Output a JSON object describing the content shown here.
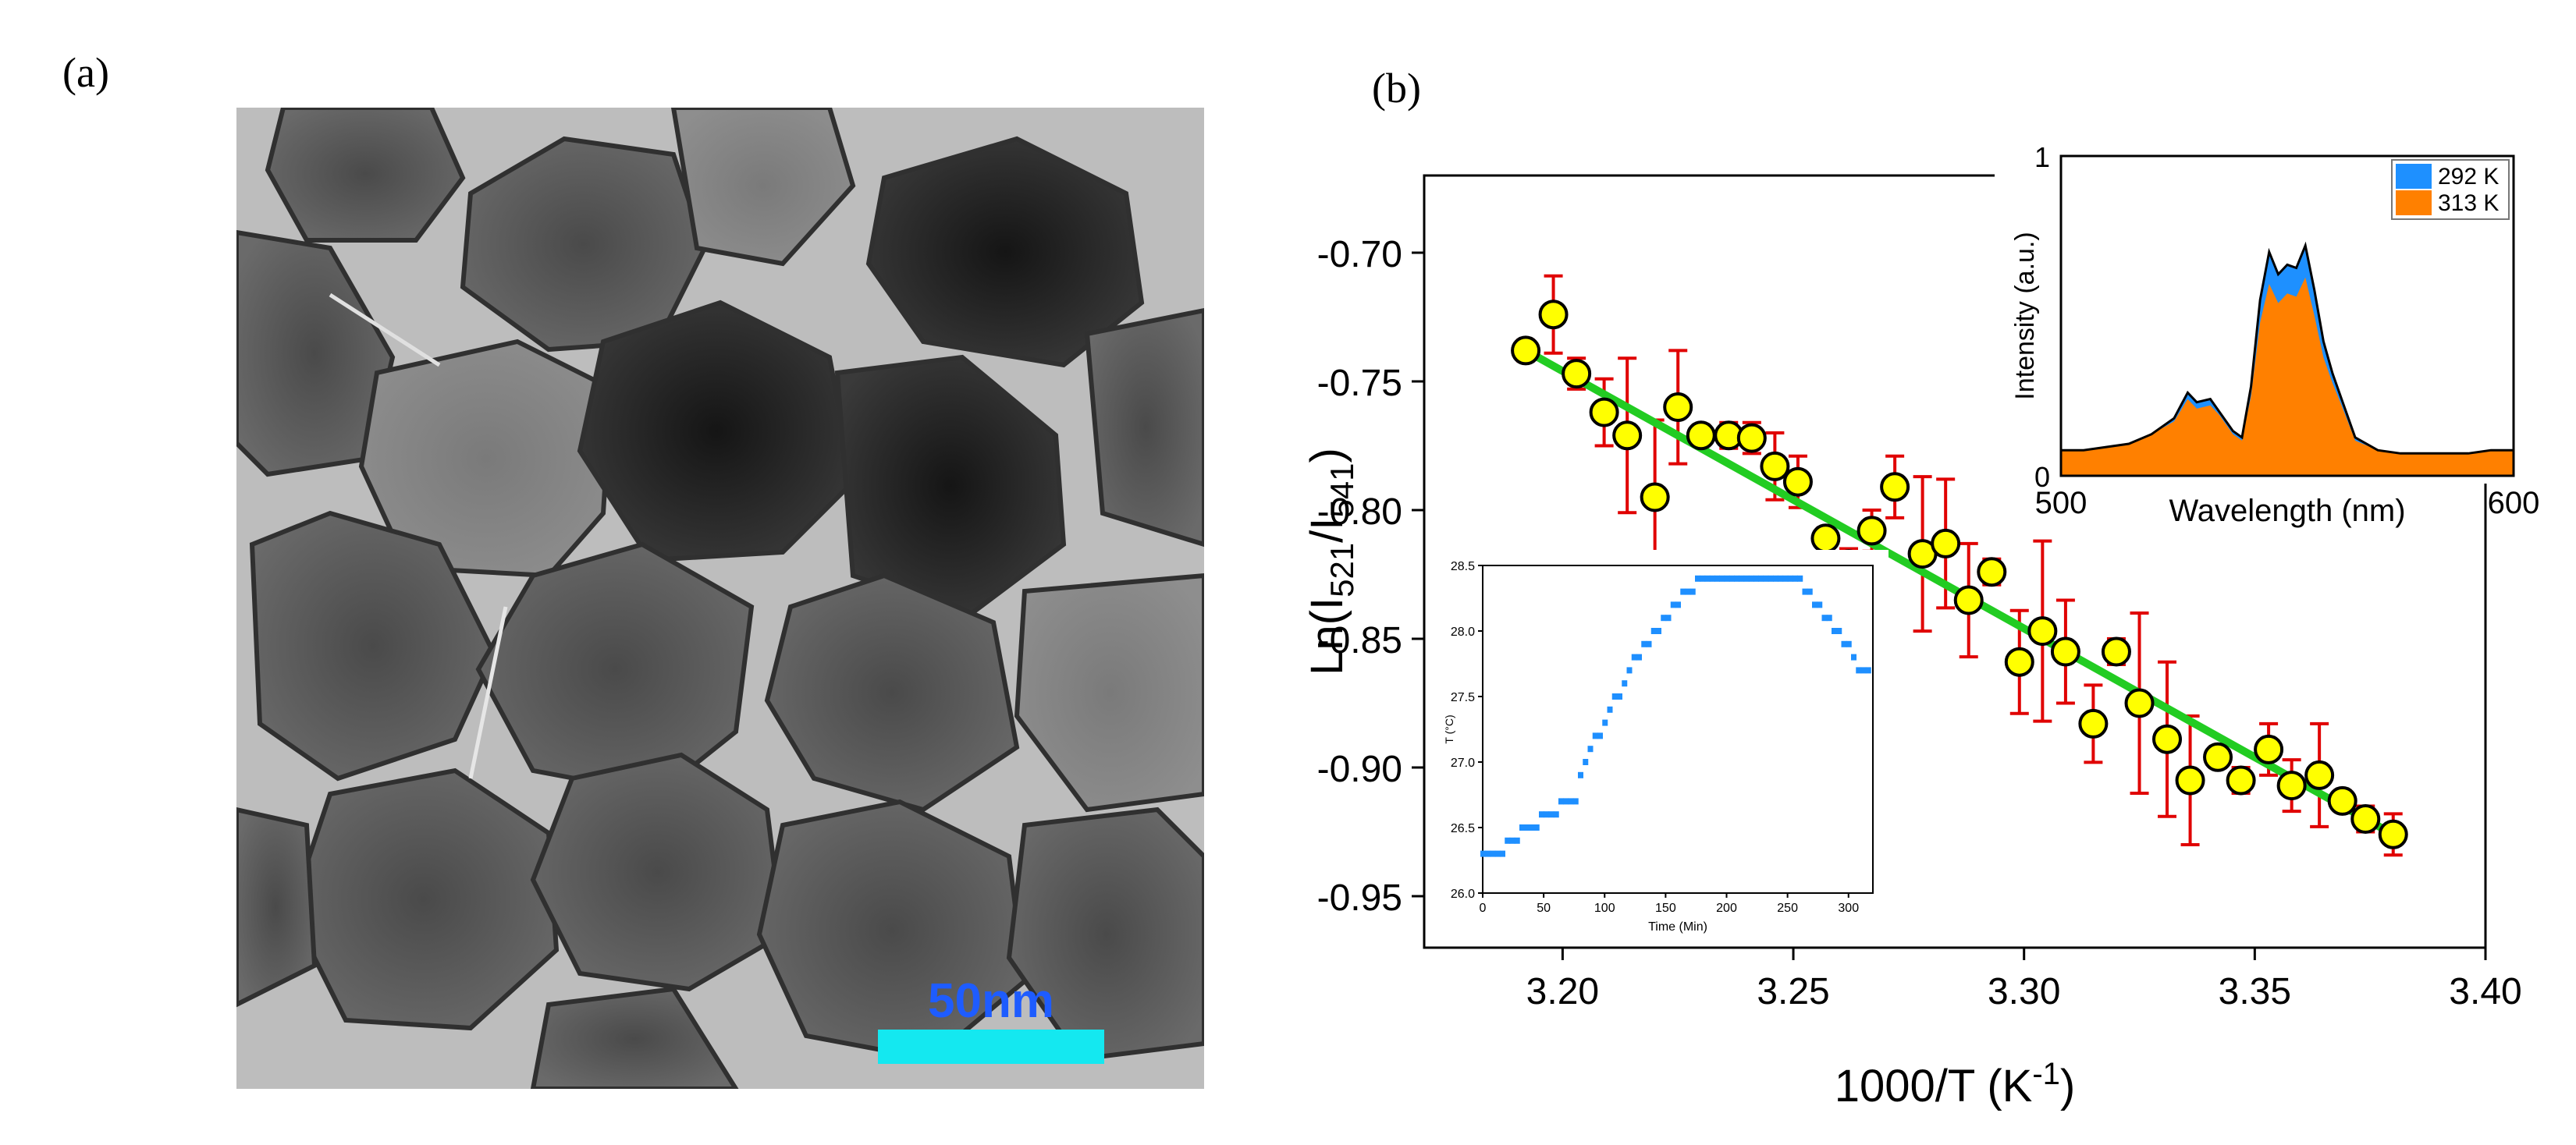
{
  "panels": {
    "a": "(a)",
    "b": "(b)"
  },
  "tem_image": {
    "scale_bar_label": "50nm",
    "scale_bar_color": "#14e8f0",
    "scale_label_color": "#1e5cff"
  },
  "chart_data": [
    {
      "type": "scatter",
      "title": "",
      "xlabel": "1000/T (K",
      "xlabel_sup": "-1",
      "xlabel_close": ")",
      "ylabel": "Ln(I",
      "ylabel_sub1": "521",
      "ylabel_mid": "/I",
      "ylabel_sub2": "541",
      "ylabel_close": ")",
      "xlim": [
        3.17,
        3.4
      ],
      "ylim": [
        -0.97,
        -0.67
      ],
      "xticks": [
        "3.20",
        "3.25",
        "3.30",
        "3.35",
        "3.40"
      ],
      "yticks": [
        "-0.70",
        "-0.75",
        "-0.80",
        "-0.85",
        "-0.90",
        "-0.95"
      ],
      "series": [
        {
          "marker_color": "#ffff00",
          "errorbar_color": "#e00000",
          "points": [
            {
              "x": 3.192,
              "y": -0.738,
              "err": 0.004
            },
            {
              "x": 3.198,
              "y": -0.724,
              "err": 0.015
            },
            {
              "x": 3.203,
              "y": -0.747,
              "err": 0.006
            },
            {
              "x": 3.209,
              "y": -0.762,
              "err": 0.013
            },
            {
              "x": 3.214,
              "y": -0.771,
              "err": 0.03
            },
            {
              "x": 3.22,
              "y": -0.795,
              "err": 0.03
            },
            {
              "x": 3.225,
              "y": -0.76,
              "err": 0.022
            },
            {
              "x": 3.23,
              "y": -0.771,
              "err": 0.004
            },
            {
              "x": 3.236,
              "y": -0.771,
              "err": 0.005
            },
            {
              "x": 3.241,
              "y": -0.772,
              "err": 0.006
            },
            {
              "x": 3.246,
              "y": -0.783,
              "err": 0.013
            },
            {
              "x": 3.251,
              "y": -0.789,
              "err": 0.01
            },
            {
              "x": 3.257,
              "y": -0.811,
              "err": 0.004
            },
            {
              "x": 3.262,
              "y": -0.821,
              "err": 0.006
            },
            {
              "x": 3.267,
              "y": -0.808,
              "err": 0.008
            },
            {
              "x": 3.272,
              "y": -0.791,
              "err": 0.012
            },
            {
              "x": 3.278,
              "y": -0.817,
              "err": 0.03
            },
            {
              "x": 3.283,
              "y": -0.813,
              "err": 0.025
            },
            {
              "x": 3.288,
              "y": -0.835,
              "err": 0.022
            },
            {
              "x": 3.293,
              "y": -0.824,
              "err": 0.005
            },
            {
              "x": 3.299,
              "y": -0.859,
              "err": 0.02
            },
            {
              "x": 3.304,
              "y": -0.847,
              "err": 0.035
            },
            {
              "x": 3.309,
              "y": -0.855,
              "err": 0.02
            },
            {
              "x": 3.315,
              "y": -0.883,
              "err": 0.015
            },
            {
              "x": 3.32,
              "y": -0.855,
              "err": 0.005
            },
            {
              "x": 3.325,
              "y": -0.875,
              "err": 0.035
            },
            {
              "x": 3.331,
              "y": -0.889,
              "err": 0.03
            },
            {
              "x": 3.336,
              "y": -0.905,
              "err": 0.025
            },
            {
              "x": 3.342,
              "y": -0.896,
              "err": 0.004
            },
            {
              "x": 3.347,
              "y": -0.905,
              "err": 0.005
            },
            {
              "x": 3.353,
              "y": -0.893,
              "err": 0.01
            },
            {
              "x": 3.358,
              "y": -0.907,
              "err": 0.01
            },
            {
              "x": 3.364,
              "y": -0.903,
              "err": 0.02
            },
            {
              "x": 3.369,
              "y": -0.913,
              "err": 0.004
            },
            {
              "x": 3.374,
              "y": -0.92,
              "err": 0.005
            },
            {
              "x": 3.38,
              "y": -0.926,
              "err": 0.008
            }
          ]
        }
      ],
      "fit_line": {
        "color": "#22cc22",
        "x": [
          3.192,
          3.382
        ],
        "y": [
          -0.738,
          -0.928
        ]
      }
    },
    {
      "type": "area",
      "xlabel": "Wavelength (nm)",
      "ylabel": "Intensity (a.u.)",
      "xlim": [
        500,
        600
      ],
      "ylim": [
        0,
        1
      ],
      "xticks": [
        "500",
        "600"
      ],
      "yticks": [
        "0",
        "1"
      ],
      "legend_position": "top-right",
      "series": [
        {
          "name": "292 K",
          "color": "#1e90ff"
        },
        {
          "name": "313 K",
          "color": "#ff8000"
        }
      ],
      "x": [
        500,
        505,
        510,
        515,
        520,
        525,
        528,
        530,
        533,
        535,
        538,
        540,
        542,
        544,
        546,
        548,
        550,
        552,
        554,
        556,
        558,
        560,
        562,
        565,
        570,
        575,
        580,
        585,
        590,
        595,
        600
      ],
      "y_292": [
        0.08,
        0.08,
        0.09,
        0.1,
        0.13,
        0.18,
        0.26,
        0.23,
        0.24,
        0.2,
        0.14,
        0.12,
        0.28,
        0.55,
        0.7,
        0.63,
        0.66,
        0.65,
        0.72,
        0.58,
        0.42,
        0.32,
        0.24,
        0.12,
        0.08,
        0.07,
        0.07,
        0.07,
        0.07,
        0.08,
        0.08
      ],
      "y_313": [
        0.08,
        0.08,
        0.09,
        0.1,
        0.13,
        0.17,
        0.24,
        0.21,
        0.22,
        0.19,
        0.13,
        0.11,
        0.25,
        0.48,
        0.6,
        0.54,
        0.57,
        0.56,
        0.62,
        0.5,
        0.37,
        0.29,
        0.22,
        0.11,
        0.08,
        0.07,
        0.07,
        0.07,
        0.07,
        0.08,
        0.08
      ]
    },
    {
      "type": "scatter",
      "xlabel": "Time (Min)",
      "ylabel": "T (°C)",
      "xlim": [
        0,
        320
      ],
      "ylim": [
        26.0,
        28.5
      ],
      "xticks": [
        "0",
        "50",
        "100",
        "150",
        "200",
        "250",
        "300"
      ],
      "yticks": [
        "26.0",
        "26.5",
        "27.0",
        "27.5",
        "28.0",
        "28.5"
      ],
      "marker_color": "#1e8fff",
      "time": [
        0,
        4,
        8,
        12,
        16,
        20,
        24,
        28,
        32,
        36,
        40,
        44,
        48,
        52,
        56,
        60,
        64,
        68,
        72,
        76,
        80,
        84,
        88,
        92,
        96,
        100,
        104,
        108,
        112,
        116,
        120,
        124,
        128,
        132,
        136,
        140,
        144,
        148,
        152,
        156,
        160,
        164,
        168,
        172,
        176,
        180,
        184,
        188,
        192,
        196,
        200,
        204,
        208,
        212,
        216,
        220,
        224,
        228,
        232,
        236,
        240,
        244,
        248,
        252,
        256,
        260,
        264,
        268,
        272,
        276,
        280,
        284,
        288,
        292,
        296,
        300,
        304,
        308,
        312,
        316
      ],
      "temp": [
        26.3,
        26.3,
        26.3,
        26.3,
        26.3,
        26.4,
        26.4,
        26.4,
        26.5,
        26.5,
        26.5,
        26.5,
        26.6,
        26.6,
        26.6,
        26.6,
        26.7,
        26.7,
        26.7,
        26.7,
        26.9,
        27.0,
        27.1,
        27.2,
        27.2,
        27.3,
        27.4,
        27.5,
        27.5,
        27.6,
        27.7,
        27.8,
        27.8,
        27.9,
        27.9,
        28.0,
        28.0,
        28.1,
        28.1,
        28.2,
        28.2,
        28.3,
        28.3,
        28.3,
        28.4,
        28.4,
        28.4,
        28.4,
        28.4,
        28.4,
        28.4,
        28.4,
        28.4,
        28.4,
        28.4,
        28.4,
        28.4,
        28.4,
        28.4,
        28.4,
        28.4,
        28.4,
        28.4,
        28.4,
        28.4,
        28.4,
        28.3,
        28.3,
        28.2,
        28.2,
        28.1,
        28.1,
        28.0,
        28.0,
        27.9,
        27.9,
        27.8,
        27.7,
        27.7,
        27.7
      ]
    }
  ]
}
